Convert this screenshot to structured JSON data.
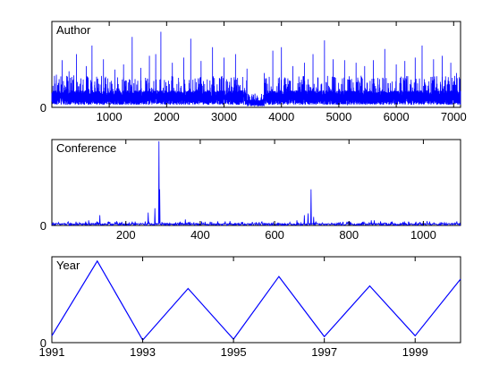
{
  "chart_data": [
    {
      "type": "line",
      "title": "Author",
      "color": "#0000ff",
      "xlim": [
        1,
        7120
      ],
      "ylim": [
        0,
        1
      ],
      "xticks": [
        1000,
        2000,
        3000,
        4000,
        5000,
        6000,
        7000
      ],
      "xtick_labels": [
        "1000",
        "2000",
        "3000",
        "4000",
        "5000",
        "6000",
        "7000"
      ],
      "yticks": [
        0
      ],
      "ytick_labels": [
        "0"
      ],
      "signal": {
        "n": 7120,
        "base": 0.12,
        "noise": 0.09,
        "spikes": [
          {
            "x": 80,
            "y": 0.38
          },
          {
            "x": 180,
            "y": 0.55
          },
          {
            "x": 300,
            "y": 0.42
          },
          {
            "x": 430,
            "y": 0.62
          },
          {
            "x": 600,
            "y": 0.48
          },
          {
            "x": 700,
            "y": 0.72
          },
          {
            "x": 900,
            "y": 0.56
          },
          {
            "x": 1100,
            "y": 0.44
          },
          {
            "x": 1250,
            "y": 0.5
          },
          {
            "x": 1400,
            "y": 0.82
          },
          {
            "x": 1550,
            "y": 0.46
          },
          {
            "x": 1700,
            "y": 0.6
          },
          {
            "x": 1810,
            "y": 0.62
          },
          {
            "x": 1900,
            "y": 0.88
          },
          {
            "x": 2100,
            "y": 0.52
          },
          {
            "x": 2300,
            "y": 0.58
          },
          {
            "x": 2420,
            "y": 0.8
          },
          {
            "x": 2600,
            "y": 0.54
          },
          {
            "x": 2800,
            "y": 0.7
          },
          {
            "x": 3000,
            "y": 0.58
          },
          {
            "x": 3200,
            "y": 0.62
          },
          {
            "x": 3400,
            "y": 0.45
          },
          {
            "x": 3700,
            "y": 0.4
          },
          {
            "x": 3850,
            "y": 0.66
          },
          {
            "x": 4000,
            "y": 0.7
          },
          {
            "x": 4200,
            "y": 0.48
          },
          {
            "x": 4400,
            "y": 0.52
          },
          {
            "x": 4550,
            "y": 0.62
          },
          {
            "x": 4750,
            "y": 0.78
          },
          {
            "x": 4900,
            "y": 0.56
          },
          {
            "x": 5100,
            "y": 0.55
          },
          {
            "x": 5300,
            "y": 0.52
          },
          {
            "x": 5450,
            "y": 0.48
          },
          {
            "x": 5600,
            "y": 0.55
          },
          {
            "x": 5800,
            "y": 0.68
          },
          {
            "x": 6000,
            "y": 0.5
          },
          {
            "x": 6150,
            "y": 0.54
          },
          {
            "x": 6330,
            "y": 0.58
          },
          {
            "x": 6450,
            "y": 0.72
          },
          {
            "x": 6650,
            "y": 0.56
          },
          {
            "x": 6800,
            "y": 0.6
          },
          {
            "x": 6950,
            "y": 0.52
          },
          {
            "x": 7050,
            "y": 0.4
          }
        ],
        "quiet": [
          [
            3400,
            3700
          ]
        ]
      }
    },
    {
      "type": "line",
      "title": "Conference",
      "color": "#0000ff",
      "xlim": [
        1,
        1100
      ],
      "ylim": [
        0,
        1
      ],
      "xticks": [
        200,
        400,
        600,
        800,
        1000
      ],
      "xtick_labels": [
        "200",
        "400",
        "600",
        "800",
        "1000"
      ],
      "yticks": [
        0
      ],
      "ytick_labels": [
        "0"
      ],
      "signal": {
        "n": 1100,
        "base": 0.015,
        "noise": 0.012,
        "spikes": [
          {
            "x": 100,
            "y": 0.06
          },
          {
            "x": 130,
            "y": 0.12
          },
          {
            "x": 175,
            "y": 0.05
          },
          {
            "x": 260,
            "y": 0.15
          },
          {
            "x": 278,
            "y": 0.2
          },
          {
            "x": 289,
            "y": 0.98
          },
          {
            "x": 291,
            "y": 0.42
          },
          {
            "x": 360,
            "y": 0.07
          },
          {
            "x": 480,
            "y": 0.05
          },
          {
            "x": 540,
            "y": 0.04
          },
          {
            "x": 660,
            "y": 0.06
          },
          {
            "x": 680,
            "y": 0.12
          },
          {
            "x": 690,
            "y": 0.14
          },
          {
            "x": 698,
            "y": 0.42
          },
          {
            "x": 705,
            "y": 0.1
          },
          {
            "x": 860,
            "y": 0.06
          },
          {
            "x": 868,
            "y": 0.06
          },
          {
            "x": 960,
            "y": 0.04
          },
          {
            "x": 1010,
            "y": 0.05
          }
        ],
        "quiet": []
      }
    },
    {
      "type": "line",
      "title": "Year",
      "color": "#0000ff",
      "xlim": [
        1991,
        2000
      ],
      "ylim": [
        0,
        1
      ],
      "xticks": [
        1991,
        1993,
        1995,
        1997,
        1999
      ],
      "xtick_labels": [
        "1991",
        "1993",
        "1995",
        "1997",
        "1999"
      ],
      "yticks": [
        0
      ],
      "ytick_labels": [
        "0"
      ],
      "x": [
        1991,
        1992,
        1993,
        1994,
        1995,
        1996,
        1997,
        1998,
        1999,
        2000
      ],
      "y": [
        0.08,
        0.95,
        0.03,
        0.63,
        0.04,
        0.77,
        0.07,
        0.66,
        0.08,
        0.74
      ]
    }
  ]
}
